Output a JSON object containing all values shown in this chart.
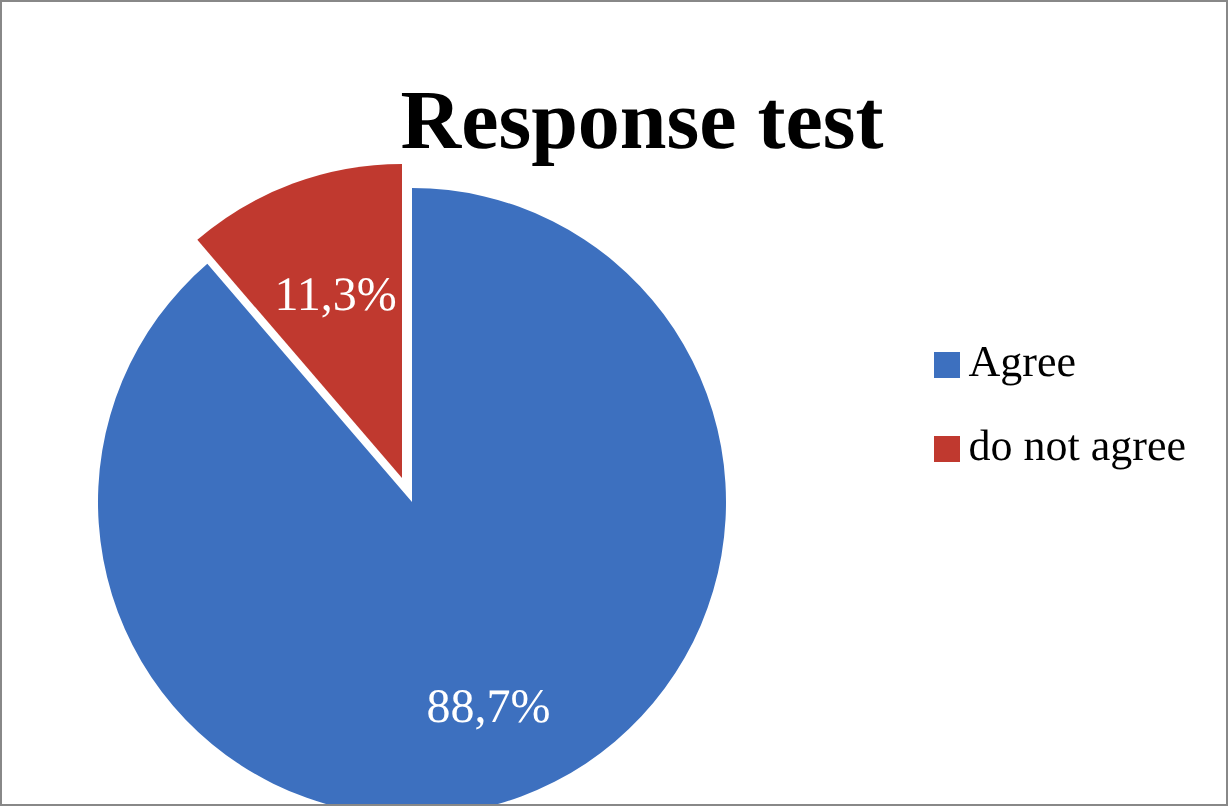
{
  "chart_data": {
    "type": "pie",
    "title": "Response test",
    "categories": [
      "Agree",
      "do not agree"
    ],
    "values": [
      88.7,
      11.3
    ],
    "colors": [
      "#3d70bf",
      "#c0392f"
    ],
    "value_labels": [
      "88,7%",
      "11,3%"
    ],
    "legend": "right"
  }
}
